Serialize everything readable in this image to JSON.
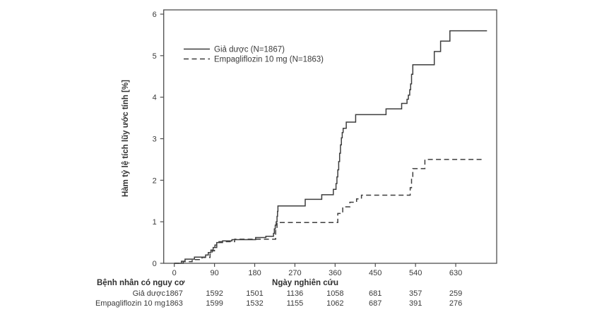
{
  "figure": {
    "legend": {
      "items": [
        {
          "label": "Giả dược (N=1867)",
          "line_style": "solid"
        },
        {
          "label": "Empagliflozin 10 mg (N=1863)",
          "line_style": "dashed"
        }
      ]
    },
    "y_axis": {
      "title": "Hàm tỷ lệ tích lũy ước tính [%]"
    },
    "x_axis": {
      "title": "Ngày nghiên cứu"
    },
    "risk_table": {
      "header": "Bệnh nhân có nguy cơ",
      "rows": [
        {
          "label": "Giả dược",
          "counts": [
            1867,
            1592,
            1501,
            1136,
            1058,
            681,
            357,
            259
          ]
        },
        {
          "label": "Empagliflozin 10 mg",
          "counts": [
            1863,
            1599,
            1532,
            1155,
            1062,
            687,
            391,
            276
          ]
        }
      ]
    },
    "colors": {
      "line": "#3d3d3d",
      "frame": "#4d4d4d",
      "text": "#2f2f2f",
      "background": "#ffffff"
    }
  },
  "chart_data": {
    "type": "line",
    "subtype": "kaplan-meier-step",
    "title": "",
    "xlabel": "Ngày nghiên cứu",
    "ylabel": "Hàm tỷ lệ tích lũy ước tính [%]",
    "xlim": [
      -24,
      722
    ],
    "ylim": [
      0,
      6.1
    ],
    "x_ticks": [
      0,
      90,
      180,
      270,
      360,
      450,
      540,
      630
    ],
    "y_ticks": [
      0,
      1,
      2,
      3,
      4,
      5,
      6
    ],
    "grid": false,
    "legend_position": "upper-left-inside",
    "series": [
      {
        "name": "Giả dược (N=1867)",
        "style": "solid",
        "points": [
          [
            0,
            0
          ],
          [
            16,
            0.05
          ],
          [
            24,
            0.1
          ],
          [
            45,
            0.15
          ],
          [
            70,
            0.2
          ],
          [
            76,
            0.26
          ],
          [
            82,
            0.32
          ],
          [
            87,
            0.38
          ],
          [
            91,
            0.44
          ],
          [
            95,
            0.5
          ],
          [
            108,
            0.54
          ],
          [
            129,
            0.57
          ],
          [
            182,
            0.62
          ],
          [
            205,
            0.65
          ],
          [
            222,
            0.72
          ],
          [
            224,
            0.83
          ],
          [
            226,
            0.92
          ],
          [
            228,
            1.0
          ],
          [
            230,
            1.13
          ],
          [
            231,
            1.25
          ],
          [
            232,
            1.38
          ],
          [
            293,
            1.54
          ],
          [
            330,
            1.65
          ],
          [
            356,
            1.78
          ],
          [
            362,
            1.92
          ],
          [
            364,
            2.08
          ],
          [
            366,
            2.25
          ],
          [
            368,
            2.45
          ],
          [
            370,
            2.65
          ],
          [
            372,
            2.85
          ],
          [
            374,
            3.02
          ],
          [
            376,
            3.15
          ],
          [
            378,
            3.25
          ],
          [
            385,
            3.4
          ],
          [
            406,
            3.58
          ],
          [
            474,
            3.72
          ],
          [
            509,
            3.85
          ],
          [
            521,
            3.95
          ],
          [
            524,
            4.05
          ],
          [
            527,
            4.18
          ],
          [
            529,
            4.32
          ],
          [
            531,
            4.55
          ],
          [
            534,
            4.78
          ],
          [
            582,
            5.1
          ],
          [
            596,
            5.35
          ],
          [
            617,
            5.6
          ],
          [
            700,
            5.6
          ]
        ]
      },
      {
        "name": "Empagliflozin 10 mg (N=1863)",
        "style": "dashed",
        "points": [
          [
            0,
            0
          ],
          [
            20,
            0.04
          ],
          [
            40,
            0.09
          ],
          [
            62,
            0.14
          ],
          [
            80,
            0.22
          ],
          [
            85,
            0.3
          ],
          [
            90,
            0.38
          ],
          [
            95,
            0.46
          ],
          [
            100,
            0.52
          ],
          [
            135,
            0.58
          ],
          [
            227,
            0.85
          ],
          [
            230,
            0.98
          ],
          [
            366,
            1.2
          ],
          [
            377,
            1.36
          ],
          [
            393,
            1.47
          ],
          [
            408,
            1.55
          ],
          [
            419,
            1.64
          ],
          [
            528,
            1.82
          ],
          [
            531,
            2.05
          ],
          [
            534,
            2.28
          ],
          [
            561,
            2.5
          ],
          [
            693,
            2.5
          ]
        ]
      }
    ]
  }
}
